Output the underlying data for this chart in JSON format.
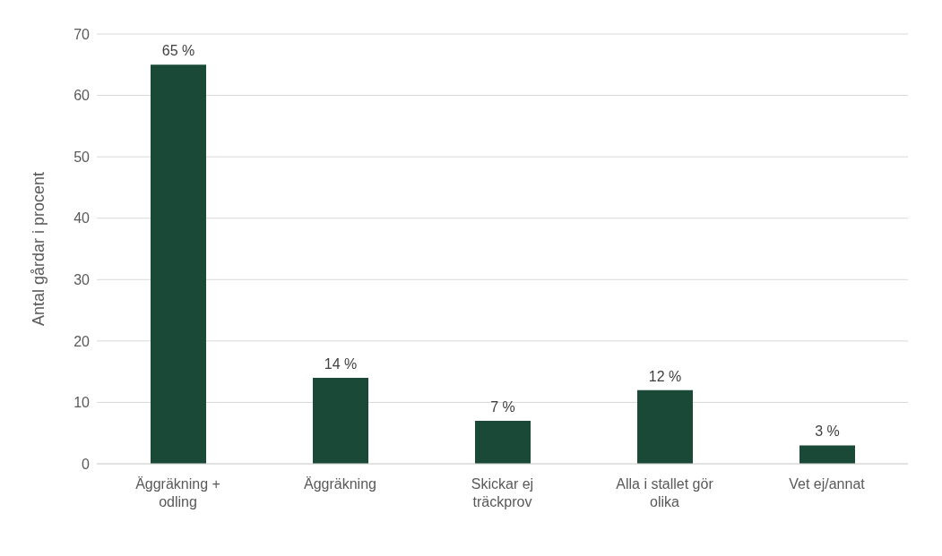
{
  "chart_data": {
    "type": "bar",
    "ylabel": "Antal gårdar i procent",
    "categories": [
      "Äggräkning + odling",
      "Äggräkning",
      "Skickar ej träckprov",
      "Alla i stallet gör olika",
      "Vet ej/annat"
    ],
    "values": [
      65,
      14,
      7,
      12,
      3
    ],
    "value_labels": [
      "65 %",
      "14 %",
      "7 %",
      "12 %",
      "3 %"
    ],
    "color": "#1a4a37",
    "ylim": [
      0,
      70
    ],
    "yticks": [
      0,
      10,
      20,
      30,
      40,
      50,
      60,
      70
    ],
    "grid": "y",
    "legend": false
  }
}
